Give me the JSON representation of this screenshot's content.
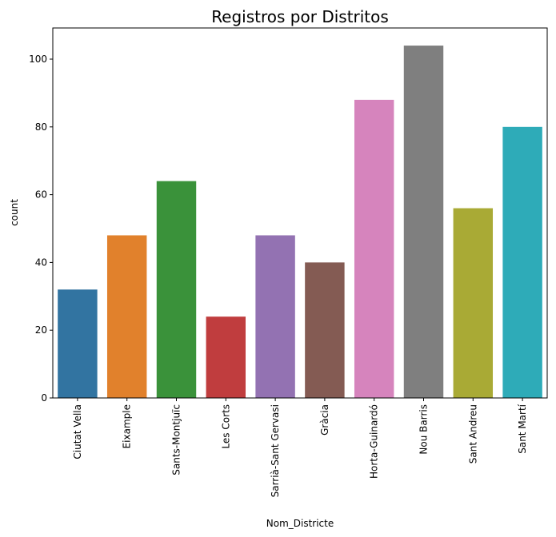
{
  "chart_data": {
    "type": "bar",
    "title": "Registros por Distritos",
    "xlabel": "Nom_Districte",
    "ylabel": "count",
    "categories": [
      "Ciutat Vella",
      "Eixample",
      "Sants-Montjuïc",
      "Les Corts",
      "Sarrià-Sant Gervasi",
      "Gràcia",
      "Horta-Guinardó",
      "Nou Barris",
      "Sant Andreu",
      "Sant Martí"
    ],
    "values": [
      32,
      48,
      64,
      24,
      48,
      40,
      88,
      104,
      56,
      80
    ],
    "colors": [
      "#3274a1",
      "#e1812c",
      "#3a923a",
      "#c03d3e",
      "#9372b2",
      "#845b53",
      "#d684bd",
      "#7f7f7f",
      "#a9aa35",
      "#2eabb8"
    ],
    "yticks": [
      0,
      20,
      40,
      60,
      80,
      100
    ],
    "ylim": [
      0,
      109.2
    ],
    "grid": false,
    "legend": "none"
  }
}
